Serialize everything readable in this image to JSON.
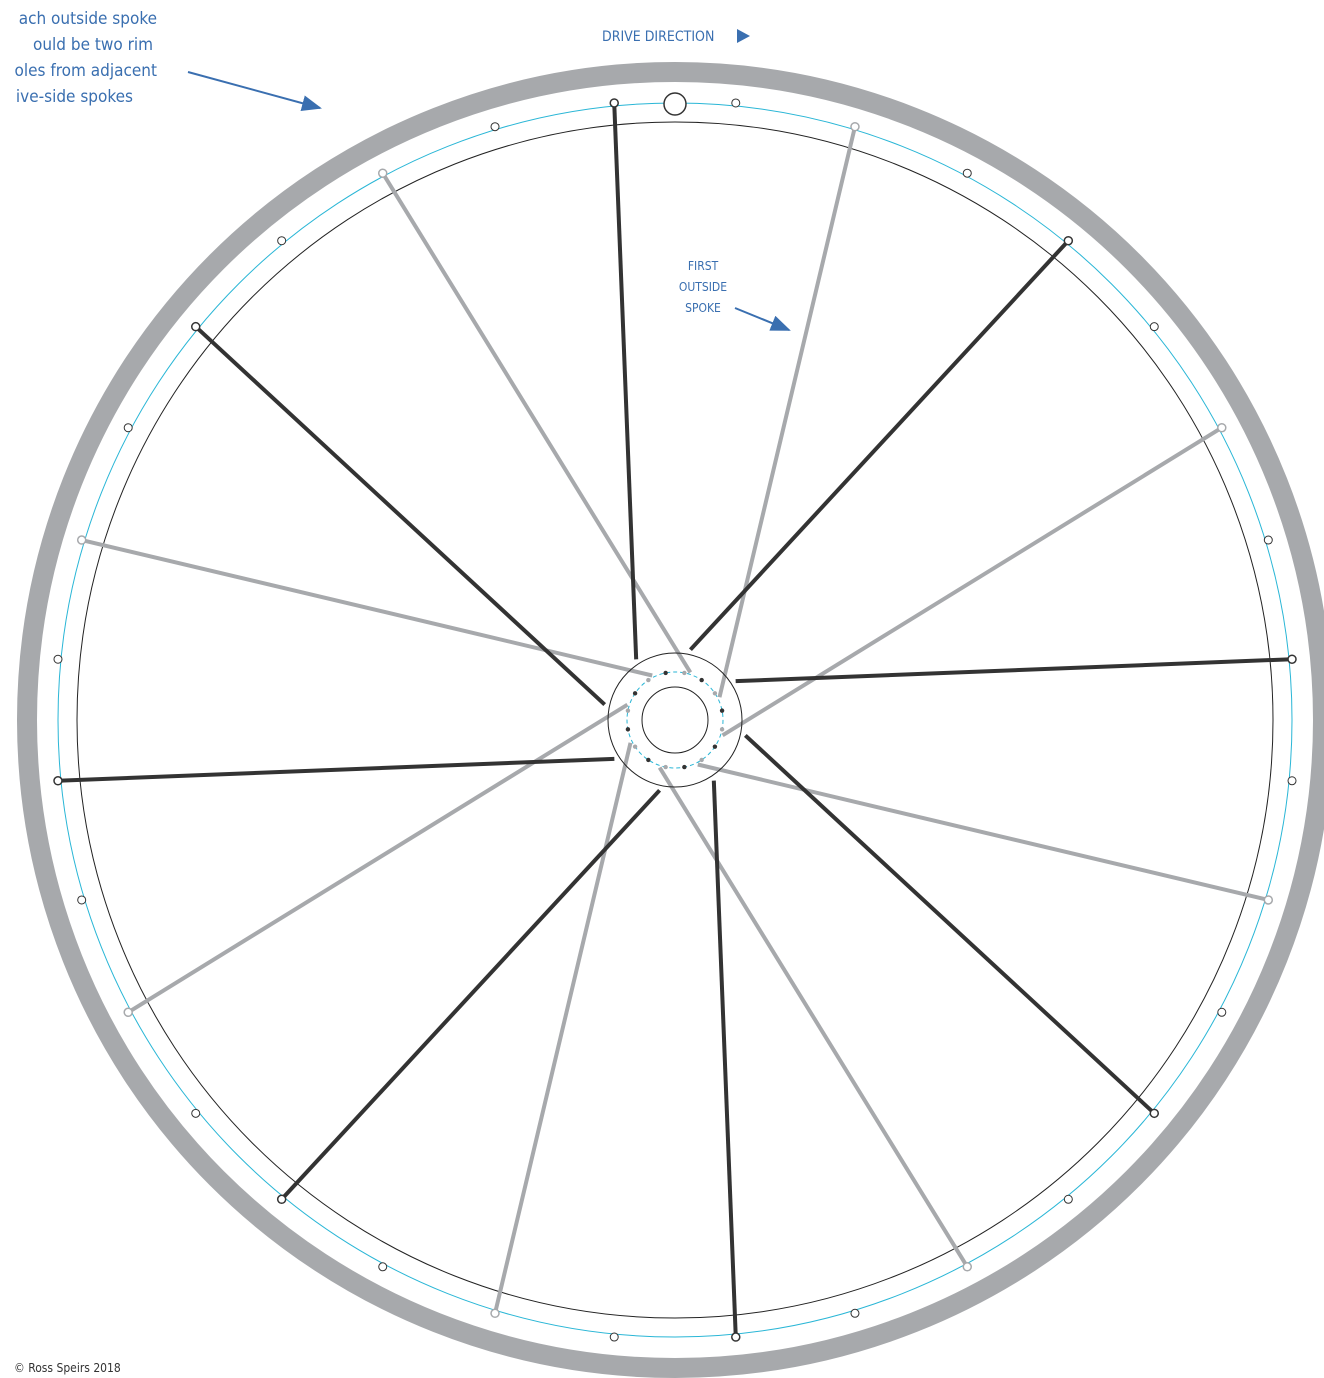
{
  "note_lines": [
    "ach outside spoke",
    "ould be two rim",
    "oles from adjacent",
    "ive-side spokes"
  ],
  "drive_direction": "DRIVE DIRECTION",
  "first_outside_spoke": [
    "FIRST",
    "OUTSIDE",
    "SPOKE"
  ],
  "copyright": "© Ross Speirs 2018"
}
